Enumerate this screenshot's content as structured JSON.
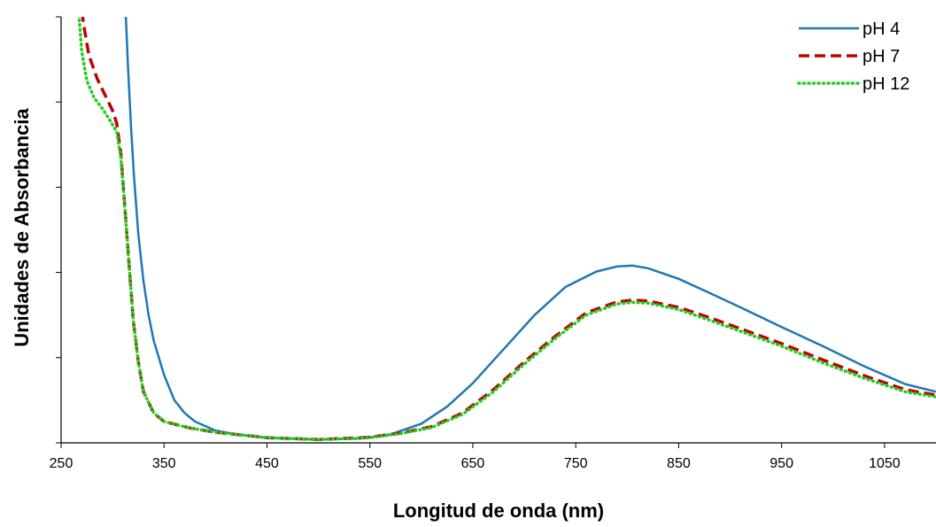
{
  "chart_data": {
    "type": "line",
    "xlabel": "Longitud de onda (nm)",
    "ylabel": "Unidades de Absorbancia",
    "xlim": [
      250,
      1100
    ],
    "ylim": [
      0,
      1
    ],
    "x_ticks": [
      250,
      350,
      450,
      550,
      650,
      750,
      850,
      950,
      1050
    ],
    "y_tick_count": 5,
    "y_tick_labels_shown": false,
    "grid": false,
    "legend_position": "top-right",
    "series": [
      {
        "name": "pH 4",
        "color": "#1F77B4",
        "style": "solid",
        "points": [
          [
            312,
            1.05
          ],
          [
            315,
            0.88
          ],
          [
            318,
            0.74
          ],
          [
            321,
            0.62
          ],
          [
            325,
            0.49
          ],
          [
            330,
            0.38
          ],
          [
            335,
            0.3
          ],
          [
            340,
            0.24
          ],
          [
            350,
            0.16
          ],
          [
            360,
            0.1
          ],
          [
            370,
            0.07
          ],
          [
            380,
            0.05
          ],
          [
            400,
            0.029
          ],
          [
            420,
            0.02
          ],
          [
            450,
            0.012
          ],
          [
            500,
            0.008
          ],
          [
            540,
            0.01
          ],
          [
            570,
            0.02
          ],
          [
            600,
            0.045
          ],
          [
            625,
            0.085
          ],
          [
            650,
            0.14
          ],
          [
            680,
            0.22
          ],
          [
            710,
            0.3
          ],
          [
            740,
            0.366
          ],
          [
            770,
            0.402
          ],
          [
            790,
            0.414
          ],
          [
            805,
            0.416
          ],
          [
            820,
            0.41
          ],
          [
            850,
            0.385
          ],
          [
            880,
            0.352
          ],
          [
            910,
            0.318
          ],
          [
            950,
            0.272
          ],
          [
            990,
            0.227
          ],
          [
            1030,
            0.18
          ],
          [
            1070,
            0.138
          ],
          [
            1100,
            0.12
          ]
        ]
      },
      {
        "name": "pH 7",
        "color": "#C00000",
        "style": "dashed",
        "points": [
          [
            268,
            1.05
          ],
          [
            272,
            0.98
          ],
          [
            277,
            0.91
          ],
          [
            285,
            0.855
          ],
          [
            292,
            0.82
          ],
          [
            300,
            0.78
          ],
          [
            304,
            0.75
          ],
          [
            308,
            0.68
          ],
          [
            312,
            0.55
          ],
          [
            316,
            0.42
          ],
          [
            320,
            0.29
          ],
          [
            325,
            0.19
          ],
          [
            330,
            0.12
          ],
          [
            340,
            0.07
          ],
          [
            350,
            0.05
          ],
          [
            375,
            0.035
          ],
          [
            400,
            0.025
          ],
          [
            450,
            0.012
          ],
          [
            500,
            0.008
          ],
          [
            550,
            0.013
          ],
          [
            580,
            0.023
          ],
          [
            610,
            0.038
          ],
          [
            640,
            0.07
          ],
          [
            670,
            0.125
          ],
          [
            700,
            0.19
          ],
          [
            730,
            0.25
          ],
          [
            760,
            0.305
          ],
          [
            790,
            0.331
          ],
          [
            805,
            0.335
          ],
          [
            820,
            0.333
          ],
          [
            850,
            0.318
          ],
          [
            880,
            0.294
          ],
          [
            910,
            0.268
          ],
          [
            950,
            0.233
          ],
          [
            990,
            0.195
          ],
          [
            1030,
            0.158
          ],
          [
            1070,
            0.125
          ],
          [
            1100,
            0.112
          ]
        ]
      },
      {
        "name": "pH 12",
        "color": "#22CC22",
        "style": "dotted",
        "points": [
          [
            266,
            1.05
          ],
          [
            270,
            0.92
          ],
          [
            275,
            0.85
          ],
          [
            282,
            0.81
          ],
          [
            290,
            0.785
          ],
          [
            298,
            0.755
          ],
          [
            304,
            0.73
          ],
          [
            308,
            0.67
          ],
          [
            312,
            0.55
          ],
          [
            316,
            0.42
          ],
          [
            320,
            0.29
          ],
          [
            325,
            0.19
          ],
          [
            330,
            0.12
          ],
          [
            340,
            0.07
          ],
          [
            350,
            0.05
          ],
          [
            375,
            0.035
          ],
          [
            400,
            0.025
          ],
          [
            450,
            0.012
          ],
          [
            500,
            0.008
          ],
          [
            550,
            0.012
          ],
          [
            580,
            0.022
          ],
          [
            610,
            0.036
          ],
          [
            640,
            0.067
          ],
          [
            670,
            0.12
          ],
          [
            700,
            0.185
          ],
          [
            730,
            0.245
          ],
          [
            760,
            0.3
          ],
          [
            790,
            0.326
          ],
          [
            805,
            0.33
          ],
          [
            820,
            0.328
          ],
          [
            850,
            0.313
          ],
          [
            880,
            0.288
          ],
          [
            910,
            0.262
          ],
          [
            950,
            0.227
          ],
          [
            990,
            0.188
          ],
          [
            1030,
            0.152
          ],
          [
            1070,
            0.12
          ],
          [
            1100,
            0.108
          ]
        ]
      }
    ]
  }
}
